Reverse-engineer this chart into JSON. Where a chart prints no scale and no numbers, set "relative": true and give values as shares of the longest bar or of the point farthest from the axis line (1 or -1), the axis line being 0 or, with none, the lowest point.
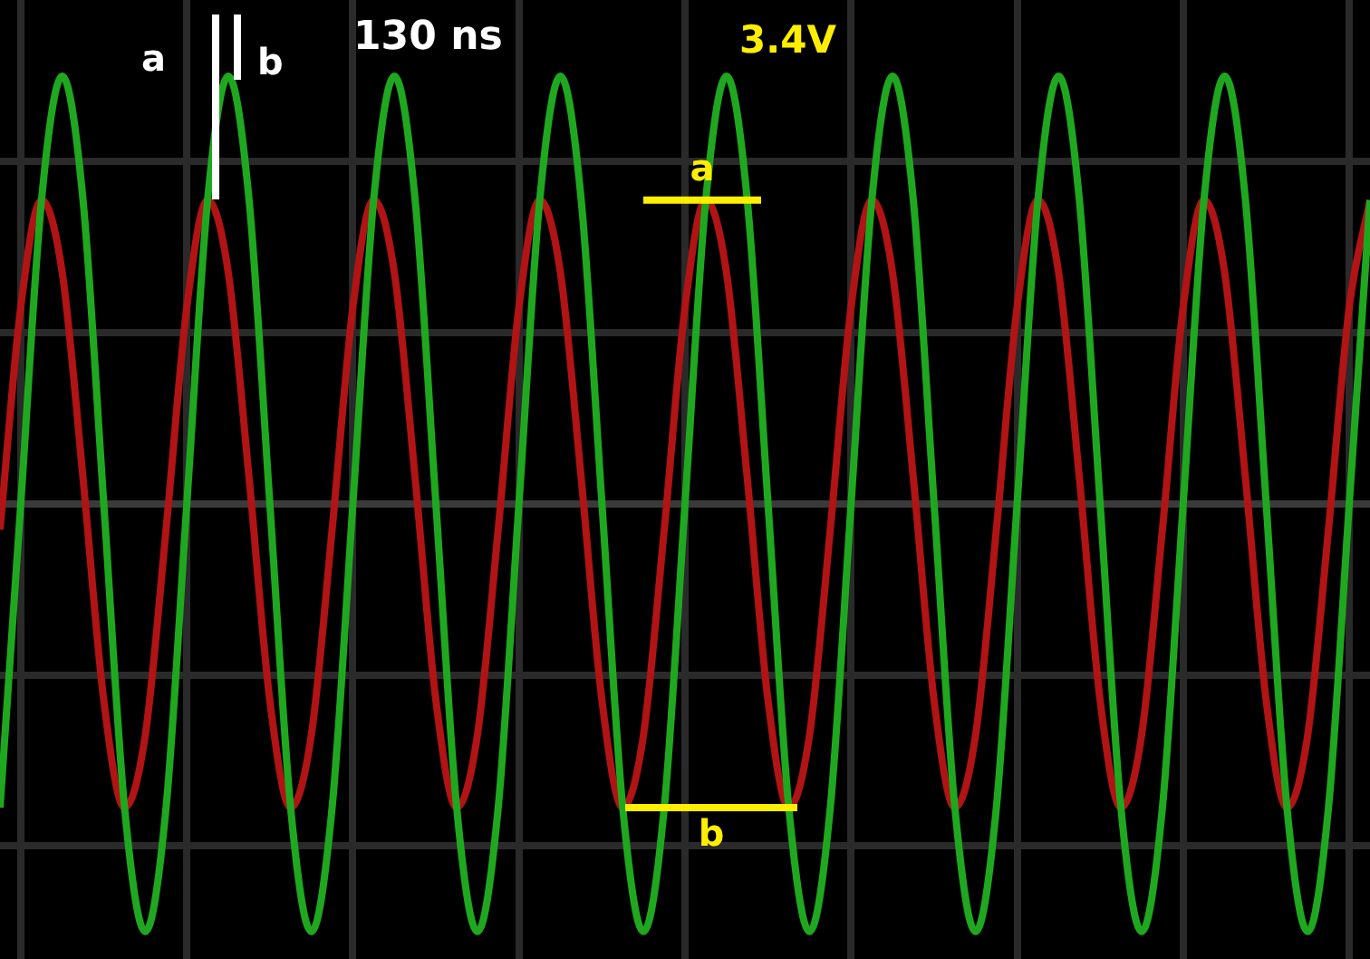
{
  "chart_data": {
    "type": "line",
    "relative": true,
    "grid": true,
    "marker": "none",
    "line_style": "solid",
    "categories": [
      null,
      null,
      null,
      null,
      null,
      null,
      null,
      null,
      null,
      null,
      null,
      null,
      null,
      null,
      null,
      null,
      null,
      null,
      null,
      null,
      null,
      null,
      null,
      null,
      null,
      null,
      null,
      null,
      null,
      null,
      null,
      null,
      null,
      null,
      null,
      null,
      null,
      null,
      null,
      null,
      null,
      null,
      null,
      null,
      null,
      null,
      null,
      null,
      null,
      null,
      null,
      null,
      null,
      null,
      null,
      null,
      null,
      null,
      null,
      null,
      null,
      null,
      null,
      null,
      null,
      null,
      null
    ],
    "series": [
      {
        "color": "#1fa81f",
        "values": [
          -0.71,
          0,
          0.71,
          1,
          0.71,
          0,
          -0.71,
          -1,
          -0.71,
          0,
          0.71,
          1,
          0.71,
          0,
          -0.71,
          -1,
          -0.71,
          0,
          0.71,
          1,
          0.71,
          0,
          -0.71,
          -1,
          -0.71,
          0,
          0.71,
          1,
          0.71,
          0,
          -0.71,
          -1,
          -0.71,
          0,
          0.71,
          1,
          0.71,
          0,
          -0.71,
          -1,
          -0.71,
          0,
          0.71,
          1,
          0.71,
          0,
          -0.71,
          -1,
          -0.71,
          0,
          0.71,
          1,
          0.71,
          0,
          -0.71,
          -1,
          -0.71,
          0,
          0.71,
          1,
          0.71,
          0,
          -0.71,
          -1,
          -0.71,
          0,
          0.71
        ]
      },
      {
        "color": "#b01414",
        "values": [
          -0.06,
          0.46,
          0.71,
          0.54,
          0.06,
          -0.46,
          -0.71,
          -0.54,
          -0.06,
          0.46,
          0.71,
          0.54,
          0.06,
          -0.46,
          -0.71,
          -0.54,
          -0.06,
          0.46,
          0.71,
          0.54,
          0.06,
          -0.46,
          -0.71,
          -0.54,
          -0.06,
          0.46,
          0.71,
          0.54,
          0.06,
          -0.46,
          -0.71,
          -0.54,
          -0.06,
          0.46,
          0.71,
          0.54,
          0.06,
          -0.46,
          -0.71,
          -0.54,
          -0.06,
          0.46,
          0.71,
          0.54,
          0.06,
          -0.46,
          -0.71,
          -0.54,
          -0.06,
          0.46,
          0.71,
          0.54,
          0.06,
          -0.46,
          -0.71,
          -0.54,
          -0.06,
          0.46,
          0.71,
          0.54,
          0.06,
          -0.46,
          -0.71,
          -0.54,
          -0.06,
          0.46,
          0.71
        ]
      }
    ],
    "ref_lines": [
      {
        "axis": "y",
        "value": 0.71,
        "label": "a",
        "color": "#ffee00"
      },
      {
        "axis": "y",
        "value": -0.71,
        "label": "b",
        "color": "#ffee00"
      }
    ],
    "annotations": [
      "a",
      "b",
      "130 ns",
      "3.4V"
    ]
  }
}
